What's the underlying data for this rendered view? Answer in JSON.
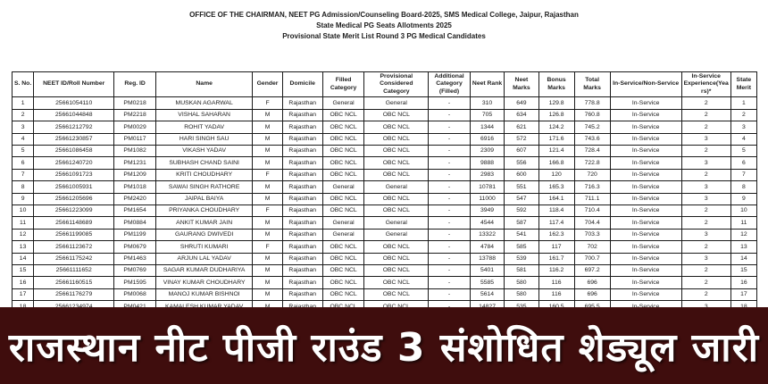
{
  "colors": {
    "page_background": "#ffffff",
    "banner_background": "#3f0d0d",
    "table_border": "#1a1a1a",
    "banner_text": "#ffffff"
  },
  "header": {
    "line1": "OFFICE OF THE CHAIRMAN, NEET PG Admission/Counseling Board-2025, SMS Medical College, Jaipur, Rajasthan",
    "line2": "State Medical PG Seats Allotments 2025",
    "line3": "Provisional State Merit List Round 3 PG Medical Candidates"
  },
  "table": {
    "columns": [
      "S. No.",
      "NEET ID/Roll Number",
      "Reg. ID",
      "Name",
      "Gender",
      "Domicile",
      "Filled Category",
      "Provisional Considered Category",
      "Additional Category (Filled)",
      "Neet Rank",
      "Neet Marks",
      "Bonus Marks",
      "Total Marks",
      "In-Service/Non-Service",
      "In-Service Experience(Years)*",
      "State Merit"
    ],
    "rows": [
      [
        "1",
        "25661054110",
        "PM0218",
        "MUSKAN AGARWAL",
        "F",
        "Rajasthan",
        "General",
        "General",
        "-",
        "310",
        "649",
        "129.8",
        "778.8",
        "In-Service",
        "2",
        "1"
      ],
      [
        "2",
        "25661044848",
        "PM2218",
        "VISHAL SAHARAN",
        "M",
        "Rajasthan",
        "OBC NCL",
        "OBC NCL",
        "-",
        "705",
        "634",
        "126.8",
        "760.8",
        "In-Service",
        "2",
        "2"
      ],
      [
        "3",
        "25661212792",
        "PM0029",
        "ROHIT YADAV",
        "M",
        "Rajasthan",
        "OBC NCL",
        "OBC NCL",
        "-",
        "1344",
        "621",
        "124.2",
        "745.2",
        "In-Service",
        "2",
        "3"
      ],
      [
        "4",
        "25661230857",
        "PM0117",
        "HARI SINGH SAU",
        "M",
        "Rajasthan",
        "OBC NCL",
        "OBC NCL",
        "-",
        "6916",
        "572",
        "171.6",
        "743.6",
        "In-Service",
        "3",
        "4"
      ],
      [
        "5",
        "25661086458",
        "PM1082",
        "VIKASH YADAV",
        "M",
        "Rajasthan",
        "OBC NCL",
        "OBC NCL",
        "-",
        "2309",
        "607",
        "121.4",
        "728.4",
        "In-Service",
        "2",
        "5"
      ],
      [
        "6",
        "25661240720",
        "PM1231",
        "SUBHASH CHAND SAINI",
        "M",
        "Rajasthan",
        "OBC NCL",
        "OBC NCL",
        "-",
        "9888",
        "556",
        "166.8",
        "722.8",
        "In-Service",
        "3",
        "6"
      ],
      [
        "7",
        "25661091723",
        "PM1209",
        "KRITI CHOUDHARY",
        "F",
        "Rajasthan",
        "OBC NCL",
        "OBC NCL",
        "-",
        "2983",
        "600",
        "120",
        "720",
        "In-Service",
        "2",
        "7"
      ],
      [
        "8",
        "25661005931",
        "PM1018",
        "SAWAI SINGH RATHORE",
        "M",
        "Rajasthan",
        "General",
        "General",
        "-",
        "10781",
        "551",
        "165.3",
        "716.3",
        "In-Service",
        "3",
        "8"
      ],
      [
        "9",
        "25661205696",
        "PM2420",
        "JAIPAL BAIYA",
        "M",
        "Rajasthan",
        "OBC NCL",
        "OBC NCL",
        "-",
        "11000",
        "547",
        "164.1",
        "711.1",
        "In-Service",
        "3",
        "9"
      ],
      [
        "10",
        "25661223099",
        "PM1654",
        "PRIYANKA CHOUDHARY",
        "F",
        "Rajasthan",
        "OBC NCL",
        "OBC NCL",
        "-",
        "3949",
        "592",
        "118.4",
        "710.4",
        "In-Service",
        "2",
        "10"
      ],
      [
        "11",
        "25661148689",
        "PM0884",
        "ANKIT KUMAR JAIN",
        "M",
        "Rajasthan",
        "General",
        "General",
        "-",
        "4544",
        "587",
        "117.4",
        "704.4",
        "In-Service",
        "2",
        "11"
      ],
      [
        "12",
        "25661199085",
        "PM1199",
        "GAURANG DWIVEDI",
        "M",
        "Rajasthan",
        "General",
        "General",
        "-",
        "13322",
        "541",
        "162.3",
        "703.3",
        "In-Service",
        "3",
        "12"
      ],
      [
        "13",
        "25661123672",
        "PM0679",
        "SHRUTI KUMARI",
        "F",
        "Rajasthan",
        "OBC NCL",
        "OBC NCL",
        "-",
        "4784",
        "585",
        "117",
        "702",
        "In-Service",
        "2",
        "13"
      ],
      [
        "14",
        "25661175242",
        "PM1463",
        "ARJUN LAL YADAV",
        "M",
        "Rajasthan",
        "OBC NCL",
        "OBC NCL",
        "-",
        "13788",
        "539",
        "161.7",
        "700.7",
        "In-Service",
        "3",
        "14"
      ],
      [
        "15",
        "25661111652",
        "PM0769",
        "SAGAR KUMAR DUDHARIYA",
        "M",
        "Rajasthan",
        "OBC NCL",
        "OBC NCL",
        "-",
        "5401",
        "581",
        "116.2",
        "697.2",
        "In-Service",
        "2",
        "15"
      ],
      [
        "16",
        "25661160515",
        "PM1595",
        "VINAY KUMAR CHOUDHARY",
        "M",
        "Rajasthan",
        "OBC NCL",
        "OBC NCL",
        "-",
        "5585",
        "580",
        "116",
        "696",
        "In-Service",
        "2",
        "16"
      ],
      [
        "17",
        "25661176279",
        "PM0068",
        "MANOJ KUMAR BISHNOI",
        "M",
        "Rajasthan",
        "OBC NCL",
        "OBC NCL",
        "-",
        "5614",
        "580",
        "116",
        "696",
        "In-Service",
        "2",
        "17"
      ],
      [
        "18",
        "25661234974",
        "PM0421",
        "KAMALESH KUMAR YADAV",
        "M",
        "Rajasthan",
        "OBC NCL",
        "OBC NCL",
        "-",
        "14827",
        "535",
        "160.5",
        "695.5",
        "In-Service",
        "3",
        "18"
      ]
    ]
  },
  "banner": {
    "text": "राजस्थान नीट पीजी राउंड 3 संशोधित शेड्यूल जारी"
  }
}
